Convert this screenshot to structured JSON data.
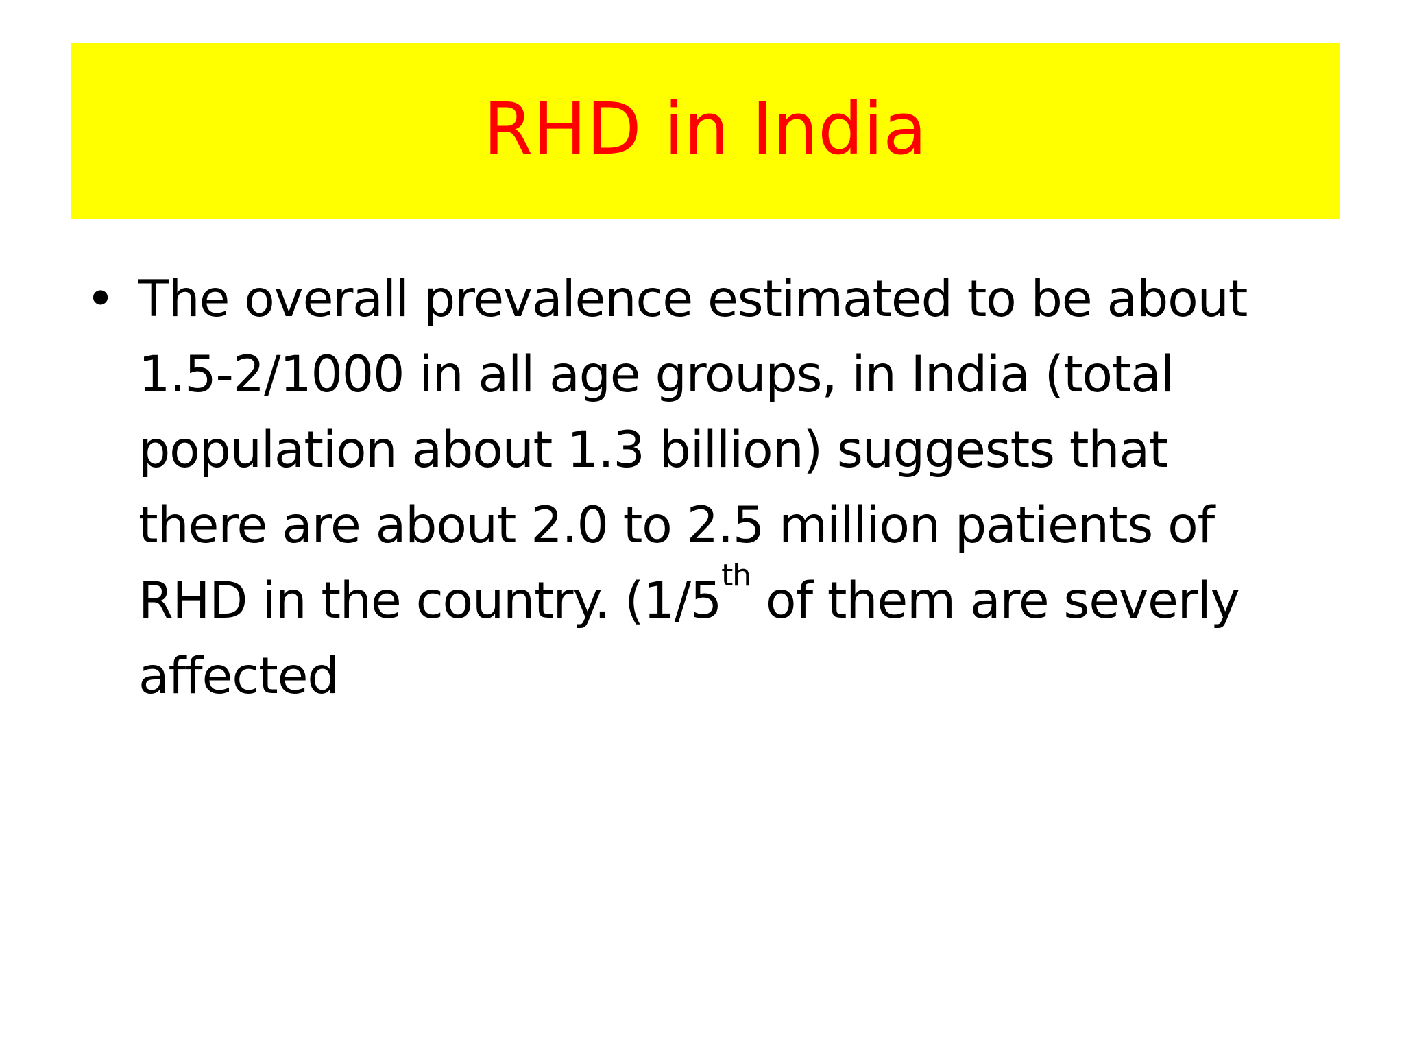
{
  "slide": {
    "title": "RHD in India",
    "title_color": "#ff0000",
    "title_bg": "#ffff00",
    "bullets": [
      {
        "glyph": "•",
        "lines": [
          "The overall prevalence estimated to be about",
          "1.5-2/1000 in all age groups, in India (total",
          "population about 1.3 billion) suggests that",
          "there are about 2.0 to 2.5 million patients of"
        ],
        "line5_before_sup": "RHD in the country. (1/5",
        "line5_sup": "th",
        "line5_after_sup": " of them are severly",
        "line6": "affected"
      }
    ]
  }
}
